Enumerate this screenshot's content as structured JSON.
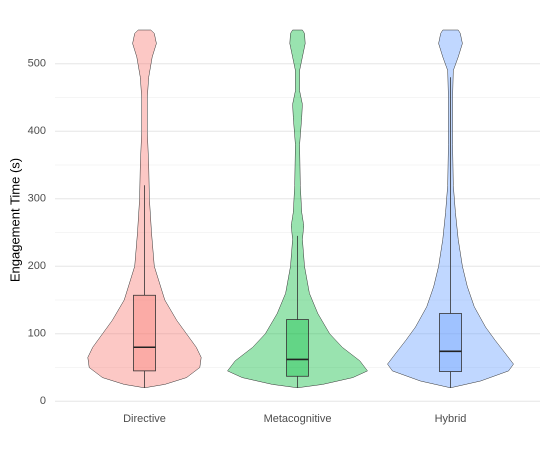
{
  "chart_data": {
    "type": "violin",
    "y_label": "Engagement Time (s)",
    "categories": [
      "Directive",
      "Metacognitive",
      "Hybrid"
    ],
    "ylim": [
      -10,
      550
    ],
    "yticks": [
      0,
      100,
      200,
      300,
      400,
      500
    ],
    "minor_yticks": [
      50,
      150,
      250,
      350,
      450
    ],
    "grid": true,
    "groups": [
      {
        "color": "#f8766d",
        "whisker_low": 20,
        "q1": 45,
        "median": 80,
        "q3": 157,
        "whisker_high": 320,
        "violin_y": [
          20,
          25,
          35,
          50,
          65,
          80,
          100,
          120,
          150,
          200,
          250,
          300,
          350,
          400,
          450,
          480,
          510,
          530,
          545,
          550
        ],
        "violin_density": [
          0,
          0.29,
          0.6,
          0.79,
          0.81,
          0.74,
          0.6,
          0.46,
          0.29,
          0.14,
          0.1,
          0.07,
          0.06,
          0.04,
          0.04,
          0.06,
          0.11,
          0.17,
          0.14,
          0.09
        ]
      },
      {
        "color": "#00ba38",
        "whisker_low": 20,
        "q1": 37,
        "median": 62,
        "q3": 121,
        "whisker_high": 245,
        "violin_y": [
          20,
          25,
          35,
          45,
          60,
          80,
          100,
          130,
          160,
          200,
          240,
          260,
          280,
          320,
          380,
          420,
          440,
          460,
          490,
          510,
          530,
          545,
          550
        ],
        "violin_density": [
          0,
          0.36,
          0.79,
          1,
          0.89,
          0.64,
          0.46,
          0.29,
          0.17,
          0.1,
          0.07,
          0.09,
          0.06,
          0.04,
          0.03,
          0.06,
          0.07,
          0.03,
          0.03,
          0.07,
          0.11,
          0.1,
          0.07
        ]
      },
      {
        "color": "#619cff",
        "whisker_low": 20,
        "q1": 44,
        "median": 74,
        "q3": 130,
        "whisker_high": 480,
        "violin_y": [
          20,
          30,
          45,
          55,
          70,
          90,
          110,
          140,
          170,
          200,
          240,
          280,
          320,
          380,
          450,
          490,
          510,
          530,
          545,
          550
        ],
        "violin_density": [
          0,
          0.43,
          0.83,
          0.9,
          0.79,
          0.64,
          0.5,
          0.34,
          0.24,
          0.17,
          0.11,
          0.07,
          0.04,
          0.03,
          0.03,
          0.04,
          0.11,
          0.17,
          0.14,
          0.11
        ]
      }
    ]
  }
}
